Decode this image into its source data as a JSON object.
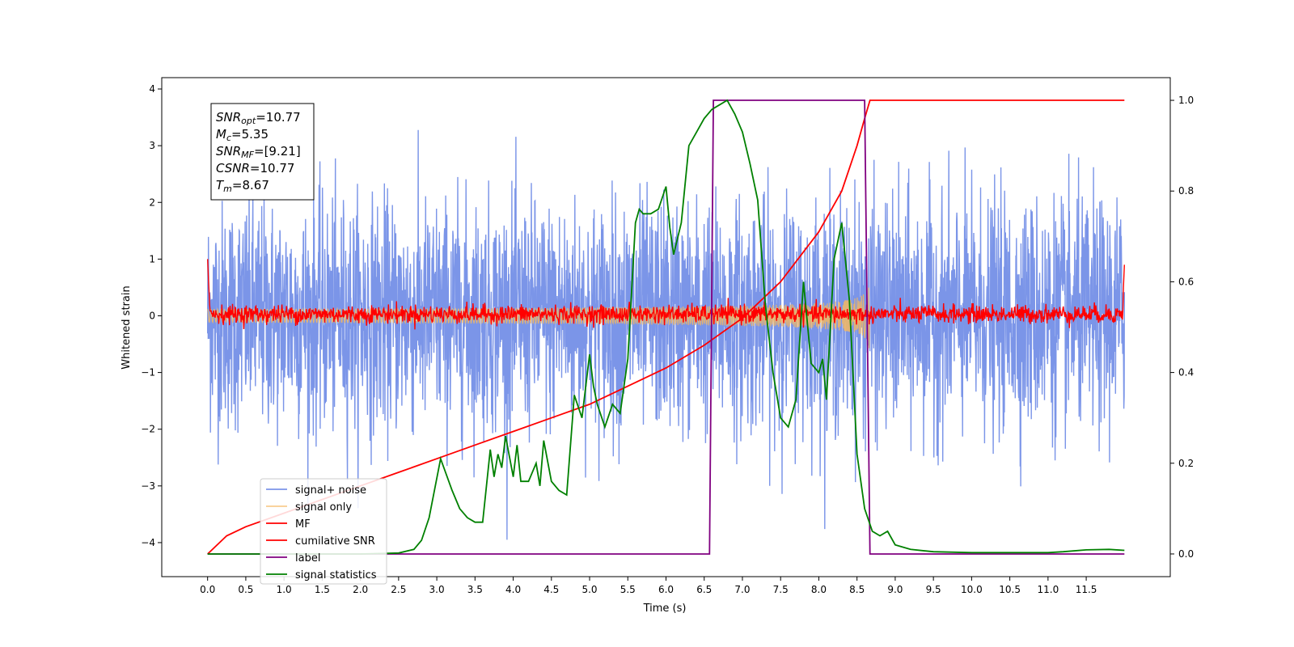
{
  "chart_data": {
    "type": "line",
    "title": "",
    "xlabel": "Time (s)",
    "ylabel": "Whitened strain",
    "xlim": [
      -0.6,
      12.6
    ],
    "ylim": [
      -4.6,
      4.2
    ],
    "y2lim": [
      -0.05,
      1.05
    ],
    "x_ticks": [
      0.0,
      0.5,
      1.0,
      1.5,
      2.0,
      2.5,
      3.0,
      3.5,
      4.0,
      4.5,
      5.0,
      5.5,
      6.0,
      6.5,
      7.0,
      7.5,
      8.0,
      8.5,
      9.0,
      9.5,
      10.0,
      10.5,
      11.0,
      11.5
    ],
    "x_tick_labels": [
      "0.0",
      "0.5",
      "1.0",
      "1.5",
      "2.0",
      "2.5",
      "3.0",
      "3.5",
      "4.0",
      "4.5",
      "5.0",
      "5.5",
      "6.0",
      "6.5",
      "7.0",
      "7.5",
      "8.0",
      "8.5",
      "9.0",
      "9.5",
      "10.0",
      "10.5",
      "11.0",
      "11.5"
    ],
    "y_ticks": [
      -4,
      -3,
      -2,
      -1,
      0,
      1,
      2,
      3,
      4
    ],
    "y_tick_labels": [
      "−4",
      "−3",
      "−2",
      "−1",
      "0",
      "1",
      "2",
      "3",
      "4"
    ],
    "y2_ticks": [
      0.0,
      0.2,
      0.4,
      0.6,
      0.8,
      1.0
    ],
    "y2_tick_labels": [
      "0.0",
      "0.2",
      "0.4",
      "0.6",
      "0.8",
      "1.0"
    ],
    "grid": false,
    "legend_position": "lower-left",
    "info_box": {
      "entries": [
        {
          "sym": "SNR",
          "sub": "opt",
          "value": "=10.77"
        },
        {
          "sym": "M",
          "sub": "c",
          "value": "=5.35"
        },
        {
          "sym": "SNR",
          "sub": "MF",
          "value": "=[9.21]"
        },
        {
          "sym": "CSNR",
          "sub": "",
          "value": "=10.77"
        },
        {
          "sym": "T",
          "sub": "m",
          "value": "=8.67"
        }
      ]
    },
    "series": [
      {
        "name": "signal+ noise",
        "color": "#7b95e8",
        "axis": "left",
        "kind": "noise",
        "x_range": [
          0.0,
          12.0
        ],
        "std": 1.0
      },
      {
        "name": "signal only",
        "color": "#f5b860",
        "axis": "left",
        "kind": "chirp",
        "x_range": [
          0.0,
          8.67
        ],
        "max_amplitude": 1.0
      },
      {
        "name": "MF",
        "color": "#ff0000",
        "axis": "left",
        "kind": "matched-filter",
        "x_range": [
          0.0,
          12.0
        ],
        "std": 0.08
      },
      {
        "name": "cumilative SNR",
        "color": "#ff0000",
        "axis": "right",
        "x": [
          0.0,
          0.25,
          0.5,
          1.0,
          1.5,
          2.0,
          2.5,
          3.0,
          3.5,
          4.0,
          4.5,
          5.0,
          5.5,
          6.0,
          6.5,
          7.0,
          7.5,
          8.0,
          8.3,
          8.5,
          8.6,
          8.67,
          12.0
        ],
        "y": [
          0.0,
          0.04,
          0.06,
          0.09,
          0.12,
          0.15,
          0.18,
          0.21,
          0.24,
          0.27,
          0.3,
          0.33,
          0.37,
          0.41,
          0.46,
          0.52,
          0.6,
          0.71,
          0.8,
          0.9,
          0.96,
          1.0,
          1.0
        ]
      },
      {
        "name": "label",
        "color": "#800080",
        "axis": "right",
        "x": [
          0.0,
          6.57,
          6.62,
          8.6,
          8.67,
          12.0
        ],
        "y": [
          0.0,
          0.0,
          1.0,
          1.0,
          0.0,
          0.0
        ]
      },
      {
        "name": "signal statistics",
        "color": "#008000",
        "axis": "right",
        "x": [
          0.0,
          0.5,
          1.0,
          1.5,
          2.0,
          2.5,
          2.7,
          2.8,
          2.9,
          3.05,
          3.2,
          3.3,
          3.4,
          3.5,
          3.6,
          3.7,
          3.75,
          3.8,
          3.85,
          3.9,
          4.0,
          4.05,
          4.1,
          4.2,
          4.3,
          4.35,
          4.4,
          4.5,
          4.6,
          4.7,
          4.8,
          4.9,
          5.0,
          5.05,
          5.1,
          5.2,
          5.3,
          5.4,
          5.5,
          5.6,
          5.65,
          5.7,
          5.8,
          5.9,
          6.0,
          6.05,
          6.1,
          6.2,
          6.3,
          6.4,
          6.5,
          6.6,
          6.7,
          6.8,
          6.9,
          7.0,
          7.1,
          7.2,
          7.3,
          7.4,
          7.5,
          7.6,
          7.7,
          7.8,
          7.9,
          8.0,
          8.05,
          8.1,
          8.2,
          8.3,
          8.4,
          8.5,
          8.6,
          8.7,
          8.8,
          8.9,
          9.0,
          9.2,
          9.5,
          10.0,
          10.5,
          11.0,
          11.2,
          11.5,
          11.8,
          12.0
        ],
        "y": [
          0.0,
          0.0,
          0.0,
          0.0,
          0.0,
          0.002,
          0.01,
          0.03,
          0.08,
          0.21,
          0.14,
          0.1,
          0.08,
          0.07,
          0.07,
          0.23,
          0.17,
          0.22,
          0.19,
          0.26,
          0.17,
          0.24,
          0.16,
          0.16,
          0.2,
          0.15,
          0.25,
          0.16,
          0.14,
          0.13,
          0.35,
          0.3,
          0.44,
          0.37,
          0.33,
          0.28,
          0.33,
          0.31,
          0.43,
          0.73,
          0.76,
          0.75,
          0.75,
          0.76,
          0.81,
          0.72,
          0.66,
          0.73,
          0.9,
          0.93,
          0.96,
          0.98,
          0.99,
          1.0,
          0.97,
          0.93,
          0.86,
          0.78,
          0.55,
          0.4,
          0.3,
          0.28,
          0.34,
          0.6,
          0.42,
          0.4,
          0.43,
          0.34,
          0.65,
          0.73,
          0.56,
          0.22,
          0.1,
          0.05,
          0.04,
          0.05,
          0.02,
          0.01,
          0.005,
          0.003,
          0.003,
          0.003,
          0.005,
          0.009,
          0.01,
          0.008
        ]
      }
    ]
  }
}
